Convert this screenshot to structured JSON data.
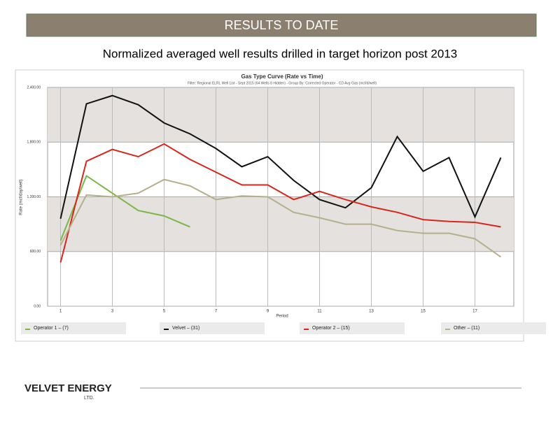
{
  "header": {
    "title": "RESULTS TO DATE",
    "subtitle": "Normalized averaged well results drilled in target horizon post 2013"
  },
  "chart_data": {
    "type": "line",
    "title": "Gas Type Curve (Rate vs Time)",
    "subtitle": "Filter: Regional ELRL Well List - Sept 2015 (64 Wells 8 Hidden) - Group By: Corrected Operator - CD Avg Gas (mcf/d/well)",
    "x_label": "Period",
    "y_label": "Rate (mcf/day/well)",
    "x": [
      1,
      2,
      3,
      4,
      5,
      6,
      7,
      8,
      9,
      10,
      11,
      12,
      13,
      14,
      15,
      16,
      17,
      18
    ],
    "xlim": [
      0.5,
      18.5
    ],
    "xticks": [
      1,
      3,
      5,
      7,
      9,
      11,
      13,
      15,
      17
    ],
    "ylim": [
      0,
      2400
    ],
    "yticks": [
      {
        "value": 0,
        "label": "0.00"
      },
      {
        "value": 600,
        "label": "600.00"
      },
      {
        "value": 1200,
        "label": "1,200.00"
      },
      {
        "value": 1800,
        "label": "1,800.00"
      },
      {
        "value": 2400,
        "label": "2,400.00"
      }
    ],
    "grid": true,
    "series": [
      {
        "name": "Operator 1 – (7)",
        "color": "#7ab648",
        "values": [
          720,
          1430,
          1240,
          1050,
          990,
          870,
          null,
          null,
          null,
          null,
          null,
          null,
          null,
          null,
          null,
          null,
          null,
          null
        ]
      },
      {
        "name": "Velvet  – (31)",
        "color": "#111111",
        "values": [
          960,
          2220,
          2310,
          2210,
          2010,
          1890,
          1730,
          1530,
          1640,
          1380,
          1170,
          1080,
          1300,
          1860,
          1480,
          1630,
          980,
          1630
        ]
      },
      {
        "name": "Operator 2 – (15)",
        "color": "#d9261c",
        "values": [
          480,
          1590,
          1720,
          1640,
          1780,
          1610,
          1470,
          1330,
          1330,
          1170,
          1260,
          1170,
          1090,
          1030,
          950,
          930,
          920,
          870
        ]
      },
      {
        "name": "Other – (11)",
        "color": "#b5b08a",
        "values": [
          670,
          1220,
          1200,
          1240,
          1390,
          1320,
          1170,
          1210,
          1200,
          1030,
          970,
          900,
          900,
          830,
          800,
          800,
          740,
          540
        ]
      }
    ]
  },
  "footer": {
    "logo": "VELVET ENERGY",
    "sub": "LTD."
  }
}
